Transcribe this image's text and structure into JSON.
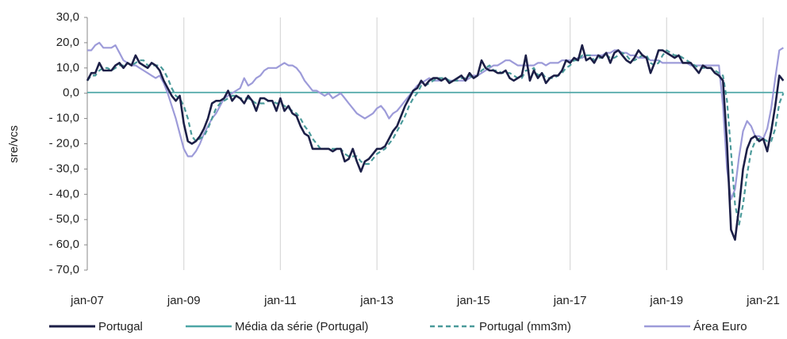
{
  "chart_data": {
    "type": "line",
    "y_label": "sre/vcs",
    "ylim": [
      -70,
      30
    ],
    "yticks": [
      {
        "value": 30,
        "label": "30,0"
      },
      {
        "value": 20,
        "label": "20,0"
      },
      {
        "value": 10,
        "label": "10,0"
      },
      {
        "value": 0,
        "label": "0,0"
      },
      {
        "value": -10,
        "label": "- 10,0"
      },
      {
        "value": -20,
        "label": "- 20,0"
      },
      {
        "value": -30,
        "label": "- 30,0"
      },
      {
        "value": -40,
        "label": "- 40,0"
      },
      {
        "value": -50,
        "label": "- 50,0"
      },
      {
        "value": -60,
        "label": "- 60,0"
      },
      {
        "value": -70,
        "label": "- 70,0"
      }
    ],
    "grid": "vertical",
    "legend": "bottom",
    "categories": [
      "jan-07",
      null,
      null,
      null,
      null,
      null,
      null,
      null,
      null,
      null,
      null,
      null,
      null,
      null,
      null,
      null,
      null,
      null,
      null,
      null,
      null,
      null,
      null,
      null,
      "jan-09",
      null,
      null,
      null,
      null,
      null,
      null,
      null,
      null,
      null,
      null,
      null,
      null,
      null,
      null,
      null,
      null,
      null,
      null,
      null,
      null,
      null,
      null,
      null,
      "jan-11",
      null,
      null,
      null,
      null,
      null,
      null,
      null,
      null,
      null,
      null,
      null,
      null,
      null,
      null,
      null,
      null,
      null,
      null,
      null,
      null,
      null,
      null,
      null,
      "jan-13",
      null,
      null,
      null,
      null,
      null,
      null,
      null,
      null,
      null,
      null,
      null,
      null,
      null,
      null,
      null,
      null,
      null,
      null,
      null,
      null,
      null,
      null,
      null,
      "jan-15",
      null,
      null,
      null,
      null,
      null,
      null,
      null,
      null,
      null,
      null,
      null,
      null,
      null,
      null,
      null,
      null,
      null,
      null,
      null,
      null,
      null,
      null,
      null,
      "jan-17",
      null,
      null,
      null,
      null,
      null,
      null,
      null,
      null,
      null,
      null,
      null,
      null,
      null,
      null,
      null,
      null,
      null,
      null,
      null,
      null,
      null,
      null,
      null,
      "jan-19",
      null,
      null,
      null,
      null,
      null,
      null,
      null,
      null,
      null,
      null,
      null,
      null,
      null,
      null,
      null,
      null,
      null,
      null,
      null,
      null,
      null,
      null,
      null,
      "jan-21",
      null,
      null,
      null,
      null,
      null
    ],
    "series": [
      {
        "name": "Portugal",
        "color": "#1c1f47",
        "style": "solid",
        "values": [
          5,
          8,
          8,
          12,
          9,
          9,
          9,
          11,
          12,
          10,
          12,
          11,
          15,
          12,
          11,
          10,
          12,
          11,
          9,
          5,
          2,
          -1,
          -3,
          -1,
          -12,
          -19,
          -20,
          -19,
          -17,
          -14,
          -10,
          -4,
          -3,
          -3,
          -2,
          1,
          -3,
          -1,
          -2,
          -4,
          -1,
          -3,
          -7,
          -2,
          -2,
          -3,
          -3,
          -7,
          -2,
          -7,
          -5,
          -8,
          -9,
          -13,
          -16,
          -17,
          -22,
          -22,
          -22,
          -22,
          -22,
          -23,
          -22,
          -22,
          -27,
          -26,
          -22,
          -27,
          -31,
          -27,
          -26,
          -24,
          -22,
          -22,
          -21,
          -18,
          -15,
          -13,
          -9,
          -5,
          -2,
          1,
          2,
          5,
          3,
          5,
          6,
          6,
          5,
          6,
          4,
          5,
          6,
          7,
          5,
          8,
          6,
          7,
          13,
          10,
          9,
          9,
          8,
          8,
          9,
          6,
          5,
          6,
          7,
          15,
          5,
          9,
          6,
          8,
          4,
          6,
          7,
          7,
          9,
          13,
          12,
          14,
          13,
          19,
          13,
          14,
          12,
          15,
          14,
          16,
          12,
          16,
          17,
          15,
          13,
          12,
          14,
          17,
          15,
          14,
          8,
          12,
          17,
          17,
          16,
          15,
          14,
          15,
          12,
          12,
          12,
          10,
          8,
          11,
          10,
          10,
          8,
          7,
          5,
          -20,
          -54,
          -58,
          -45,
          -30,
          -22,
          -18,
          -17,
          -19,
          -18,
          -23,
          -15,
          -5,
          7,
          5
        ]
      },
      {
        "name": "Média da série (Portugal)",
        "color": "#4da6a6",
        "style": "solid",
        "value": 0.3
      },
      {
        "name": "Portugal (mm3m)",
        "color": "#4a9a9a",
        "style": "dashed",
        "values": [
          5,
          7,
          7,
          9,
          10,
          10,
          9,
          10,
          11,
          11,
          12,
          11,
          12,
          13,
          13,
          11,
          11,
          11,
          11,
          9,
          6,
          2,
          -1,
          -2,
          -5,
          -10,
          -17,
          -19,
          -18,
          -17,
          -14,
          -10,
          -6,
          -4,
          -3,
          -2,
          -1,
          -1,
          -2,
          -2,
          -2,
          -3,
          -4,
          -4,
          -4,
          -3,
          -3,
          -4,
          -4,
          -5,
          -6,
          -7,
          -8,
          -10,
          -13,
          -15,
          -18,
          -20,
          -22,
          -22,
          -22,
          -22,
          -22,
          -22,
          -24,
          -25,
          -25,
          -25,
          -27,
          -28,
          -28,
          -26,
          -24,
          -23,
          -22,
          -20,
          -18,
          -15,
          -12,
          -9,
          -5,
          -2,
          0,
          3,
          3,
          4,
          5,
          6,
          6,
          6,
          5,
          5,
          5,
          6,
          6,
          7,
          6,
          7,
          9,
          10,
          11,
          9,
          9,
          8,
          8,
          8,
          7,
          6,
          6,
          9,
          9,
          10,
          7,
          8,
          6,
          6,
          6,
          7,
          8,
          10,
          11,
          13,
          13,
          15,
          15,
          15,
          13,
          14,
          14,
          15,
          14,
          14,
          15,
          16,
          15,
          13,
          13,
          14,
          15,
          15,
          12,
          11,
          12,
          15,
          17,
          16,
          15,
          15,
          14,
          13,
          12,
          11,
          10,
          10,
          10,
          10,
          9,
          8,
          7,
          -3,
          -23,
          -44,
          -52,
          -44,
          -32,
          -23,
          -19,
          -18,
          -18,
          -19,
          -19,
          -14,
          -4,
          0
        ]
      },
      {
        "name": "Área Euro",
        "color": "#9d9bd9",
        "style": "solid",
        "values": [
          17,
          17,
          19,
          20,
          18,
          18,
          18,
          19,
          16,
          13,
          12,
          11,
          11,
          10,
          9,
          8,
          7,
          6,
          7,
          4,
          0,
          -5,
          -10,
          -16,
          -22,
          -25,
          -25,
          -23,
          -20,
          -16,
          -13,
          -10,
          -8,
          -5,
          -2,
          -1,
          0,
          1,
          2,
          6,
          3,
          4,
          6,
          7,
          9,
          10,
          10,
          10,
          11,
          12,
          11,
          11,
          10,
          8,
          5,
          3,
          1,
          1,
          0,
          -1,
          0,
          -2,
          -1,
          0,
          -2,
          -4,
          -6,
          -8,
          -9,
          -10,
          -9,
          -8,
          -6,
          -5,
          -7,
          -10,
          -8,
          -7,
          -5,
          -3,
          -1,
          1,
          3,
          4,
          5,
          6,
          5,
          5,
          5,
          6,
          5,
          5,
          5,
          5,
          5,
          6,
          7,
          7,
          8,
          9,
          10,
          11,
          11,
          12,
          13,
          13,
          12,
          11,
          11,
          11,
          11,
          11,
          12,
          12,
          11,
          12,
          12,
          12,
          13,
          13,
          13,
          13,
          14,
          14,
          15,
          15,
          15,
          15,
          15,
          16,
          16,
          17,
          17,
          16,
          16,
          15,
          15,
          14,
          14,
          14,
          13,
          13,
          13,
          12,
          12,
          12,
          12,
          12,
          12,
          12,
          11,
          11,
          11,
          11,
          11,
          11,
          11,
          11,
          -5,
          -30,
          -42,
          -38,
          -25,
          -15,
          -11,
          -13,
          -17,
          -17,
          -18,
          -14,
          -6,
          6,
          17,
          18
        ]
      }
    ]
  }
}
